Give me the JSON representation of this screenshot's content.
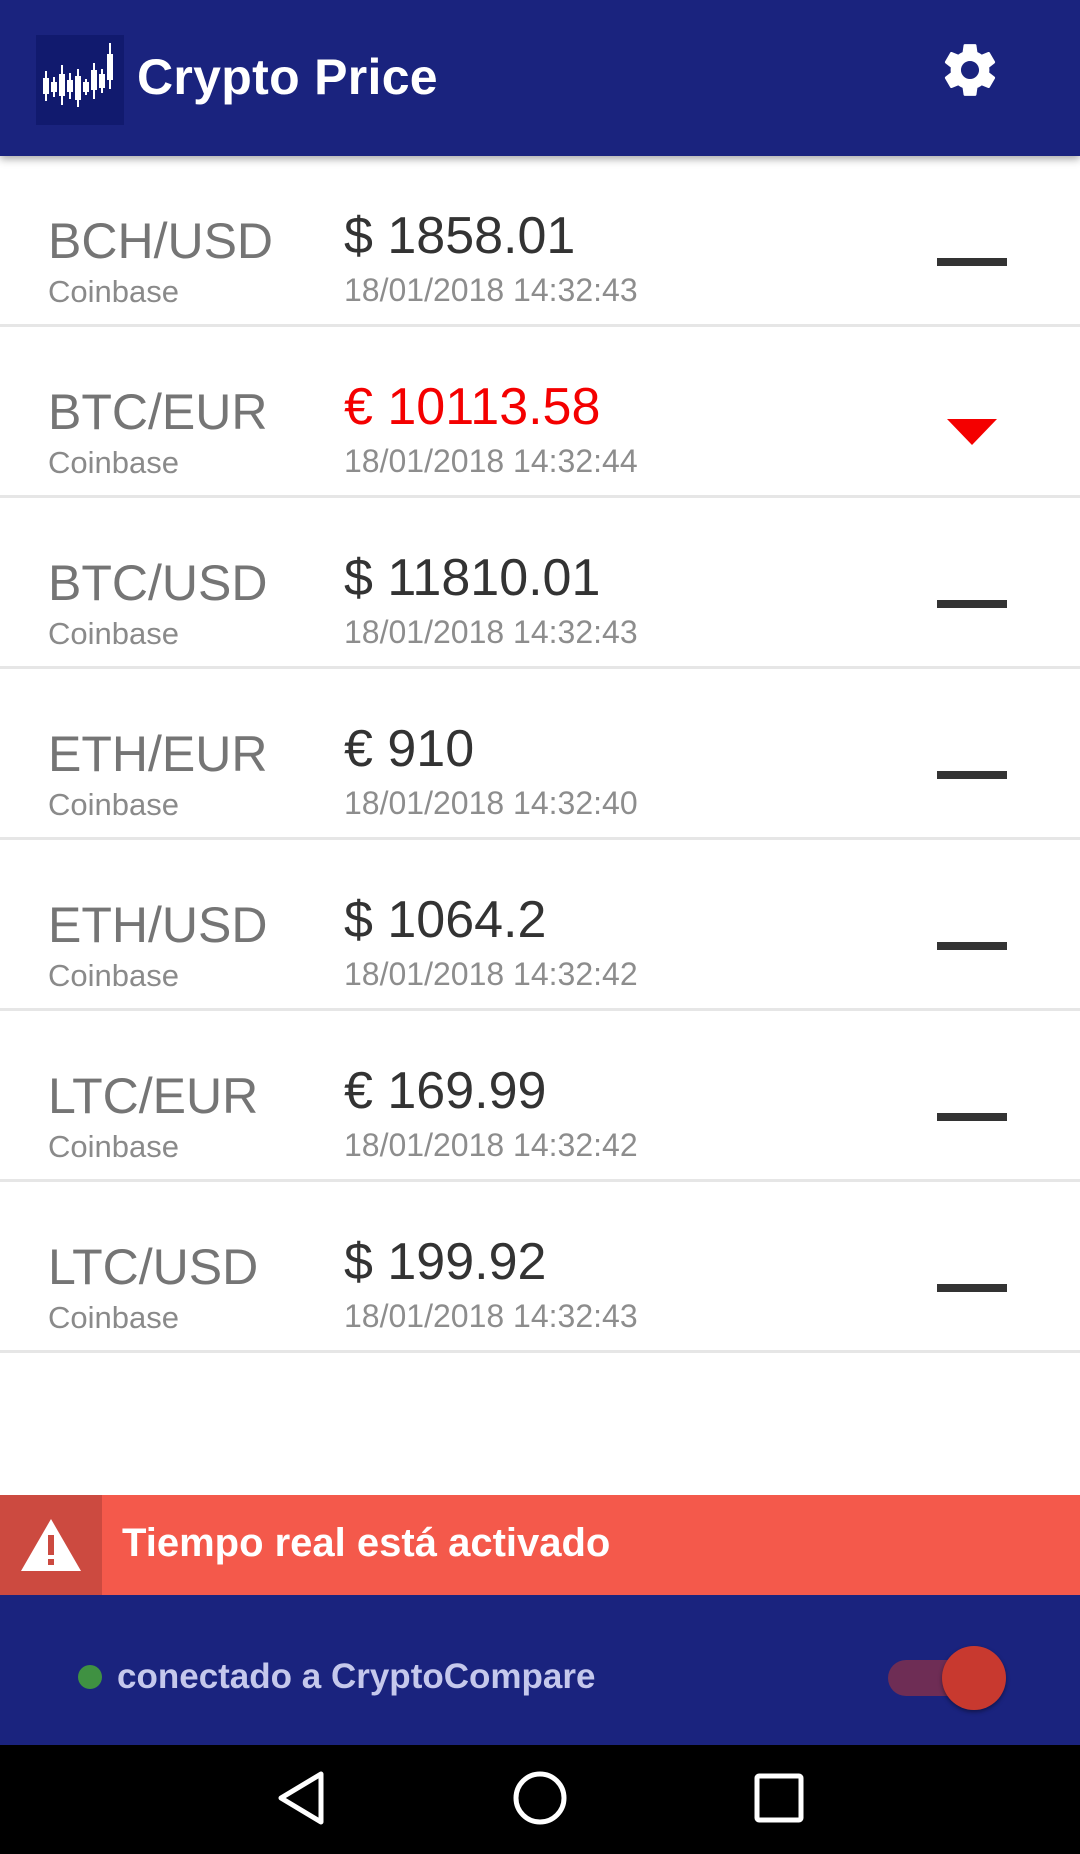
{
  "appbar": {
    "title": "Crypto Price",
    "logo_icon": "candlestick-chart-icon",
    "settings_icon": "gear-icon"
  },
  "pairs": [
    {
      "pair": "BCH/USD",
      "exchange": "Coinbase",
      "price": "$ 1858.01",
      "timestamp": "18/01/2018 14:32:43",
      "trend": "flat"
    },
    {
      "pair": "BTC/EUR",
      "exchange": "Coinbase",
      "price": "€ 10113.58",
      "timestamp": "18/01/2018 14:32:44",
      "trend": "down"
    },
    {
      "pair": "BTC/USD",
      "exchange": "Coinbase",
      "price": "$ 11810.01",
      "timestamp": "18/01/2018 14:32:43",
      "trend": "flat"
    },
    {
      "pair": "ETH/EUR",
      "exchange": "Coinbase",
      "price": "€ 910",
      "timestamp": "18/01/2018 14:32:40",
      "trend": "flat"
    },
    {
      "pair": "ETH/USD",
      "exchange": "Coinbase",
      "price": "$ 1064.2",
      "timestamp": "18/01/2018 14:32:42",
      "trend": "flat"
    },
    {
      "pair": "LTC/EUR",
      "exchange": "Coinbase",
      "price": "€ 169.99",
      "timestamp": "18/01/2018 14:32:42",
      "trend": "flat"
    },
    {
      "pair": "LTC/USD",
      "exchange": "Coinbase",
      "price": "$ 199.92",
      "timestamp": "18/01/2018 14:32:43",
      "trend": "flat"
    }
  ],
  "banner": {
    "text": "Tiempo real está activado",
    "icon": "warning-icon"
  },
  "connection": {
    "status_text": "conectado a CryptoCompare",
    "status": "connected",
    "realtime_enabled": true
  },
  "colors": {
    "primary": "#1a237e",
    "price_down": "#f40000",
    "banner": "#f4594b",
    "connected_dot": "#3f9142",
    "toggle_thumb": "#c8392f"
  },
  "navbar": {
    "back_icon": "back-triangle-icon",
    "home_icon": "home-circle-icon",
    "recents_icon": "recents-square-icon"
  }
}
